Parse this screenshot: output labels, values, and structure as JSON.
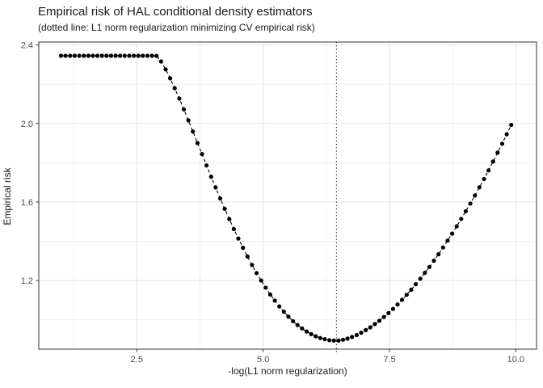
{
  "chart_data": {
    "type": "scatter",
    "title": "Empirical risk of HAL conditional density estimators",
    "subtitle": "(dotted line: L1 norm regularization minimizing CV empirical risk)",
    "xlabel": "-log(L1 norm regularization)",
    "ylabel": "Empirical risk",
    "xlim": [
      0.56,
      10.41
    ],
    "ylim": [
      0.85,
      2.415
    ],
    "x_ticks": [
      2.5,
      5.0,
      7.5,
      10.0
    ],
    "x_tick_labels": [
      "2.5",
      "5.0",
      "7.5",
      "10.0"
    ],
    "y_ticks": [
      1.2,
      1.6,
      2.0,
      2.4
    ],
    "y_tick_labels": [
      "1.2",
      "1.6",
      "2.0",
      "2.4"
    ],
    "x_minor_gridlines": [
      1.25,
      3.75,
      6.25,
      8.75
    ],
    "y_minor_gridlines": [
      1.0,
      1.4,
      1.8,
      2.2
    ],
    "grid": true,
    "legend": "none",
    "vline_x": 6.45,
    "vline_style": "dotted",
    "line_style": "dashed",
    "marker": "filled-circle",
    "x": [
      1.0,
      1.09,
      1.18,
      1.27,
      1.36,
      1.45,
      1.54,
      1.63,
      1.72,
      1.81,
      1.9,
      1.99,
      2.08,
      2.17,
      2.26,
      2.35,
      2.44,
      2.53,
      2.62,
      2.71,
      2.8,
      2.89,
      2.98,
      3.07,
      3.16,
      3.25,
      3.34,
      3.43,
      3.52,
      3.61,
      3.7,
      3.79,
      3.88,
      3.97,
      4.06,
      4.15,
      4.24,
      4.33,
      4.42,
      4.51,
      4.6,
      4.69,
      4.78,
      4.87,
      4.96,
      5.05,
      5.14,
      5.23,
      5.32,
      5.41,
      5.5,
      5.59,
      5.68,
      5.77,
      5.86,
      5.95,
      6.04,
      6.13,
      6.22,
      6.31,
      6.4,
      6.49,
      6.58,
      6.67,
      6.76,
      6.85,
      6.94,
      7.03,
      7.12,
      7.21,
      7.3,
      7.39,
      7.48,
      7.57,
      7.66,
      7.75,
      7.84,
      7.93,
      8.02,
      8.11,
      8.2,
      8.29,
      8.38,
      8.47,
      8.56,
      8.65,
      8.74,
      8.83,
      8.92,
      9.01,
      9.1,
      9.19,
      9.28,
      9.37,
      9.46,
      9.55,
      9.64,
      9.73,
      9.82,
      9.91
    ],
    "y": [
      2.345,
      2.345,
      2.345,
      2.345,
      2.345,
      2.345,
      2.345,
      2.345,
      2.345,
      2.345,
      2.345,
      2.345,
      2.345,
      2.345,
      2.345,
      2.345,
      2.345,
      2.345,
      2.345,
      2.345,
      2.345,
      2.344,
      2.316,
      2.276,
      2.23,
      2.18,
      2.127,
      2.072,
      2.016,
      1.959,
      1.9,
      1.844,
      1.786,
      1.729,
      1.674,
      1.618,
      1.565,
      1.513,
      1.462,
      1.414,
      1.367,
      1.322,
      1.279,
      1.238,
      1.2,
      1.164,
      1.129,
      1.098,
      1.068,
      1.041,
      1.016,
      0.993,
      0.973,
      0.956,
      0.94,
      0.927,
      0.916,
      0.907,
      0.901,
      0.896,
      0.894,
      0.894,
      0.898,
      0.904,
      0.912,
      0.922,
      0.934,
      0.947,
      0.961,
      0.978,
      0.995,
      1.014,
      1.034,
      1.055,
      1.078,
      1.102,
      1.127,
      1.153,
      1.181,
      1.209,
      1.239,
      1.269,
      1.301,
      1.334,
      1.368,
      1.403,
      1.439,
      1.476,
      1.514,
      1.553,
      1.592,
      1.633,
      1.675,
      1.717,
      1.761,
      1.806,
      1.851,
      1.897,
      1.945,
      1.993
    ]
  },
  "colors": {
    "point": "#000000",
    "data_line": "#000000",
    "vline": "#000000",
    "grid_major": "#e3e3e3",
    "grid_minor": "#f0f0f0",
    "panel_border": "#333333",
    "tick_mark": "#333333",
    "tick_label": "#4d4d4d",
    "text": "#1a1a1a",
    "panel_background": "#ffffff"
  }
}
